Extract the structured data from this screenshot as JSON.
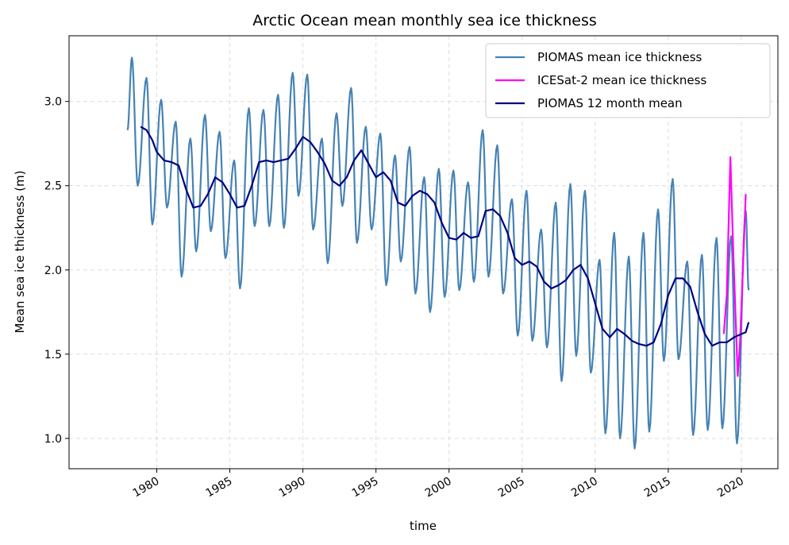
{
  "chart_data": {
    "type": "line",
    "title": "Arctic Ocean mean monthly sea ice thickness",
    "xlabel": "time",
    "ylabel": "Mean sea ice thickness (m)",
    "xlim": [
      1974.0,
      2022.5
    ],
    "ylim": [
      0.82,
      3.39
    ],
    "x_ticks": [
      1980,
      1985,
      1990,
      1995,
      2000,
      2005,
      2010,
      2015,
      2020
    ],
    "x_tick_labels": [
      "1980",
      "1985",
      "1990",
      "1995",
      "2000",
      "2005",
      "2010",
      "2015",
      "2020"
    ],
    "y_ticks": [
      1.0,
      1.5,
      2.0,
      2.5,
      3.0
    ],
    "y_tick_labels": [
      "1.0",
      "1.5",
      "2.0",
      "2.5",
      "3.0"
    ],
    "grid": true,
    "legend_position": "top-right",
    "series": [
      {
        "name": "PIOMAS mean ice thickness",
        "color": "#4682b4",
        "style": "seasonal-cycle",
        "annual_max": [
          [
            1978,
            3.26
          ],
          [
            1979,
            3.14
          ],
          [
            1980,
            3.01
          ],
          [
            1981,
            2.88
          ],
          [
            1982,
            2.78
          ],
          [
            1983,
            2.92
          ],
          [
            1984,
            2.82
          ],
          [
            1985,
            2.65
          ],
          [
            1986,
            2.96
          ],
          [
            1987,
            2.95
          ],
          [
            1988,
            3.04
          ],
          [
            1989,
            3.17
          ],
          [
            1990,
            3.16
          ],
          [
            1991,
            2.78
          ],
          [
            1992,
            2.93
          ],
          [
            1993,
            3.08
          ],
          [
            1994,
            2.85
          ],
          [
            1995,
            2.81
          ],
          [
            1996,
            2.68
          ],
          [
            1997,
            2.73
          ],
          [
            1998,
            2.55
          ],
          [
            1999,
            2.6
          ],
          [
            2000,
            2.59
          ],
          [
            2001,
            2.52
          ],
          [
            2002,
            2.83
          ],
          [
            2003,
            2.74
          ],
          [
            2004,
            2.42
          ],
          [
            2005,
            2.47
          ],
          [
            2006,
            2.24
          ],
          [
            2007,
            2.4
          ],
          [
            2008,
            2.51
          ],
          [
            2009,
            2.47
          ],
          [
            2010,
            2.06
          ],
          [
            2011,
            2.22
          ],
          [
            2012,
            2.08
          ],
          [
            2013,
            2.22
          ],
          [
            2014,
            2.36
          ],
          [
            2015,
            2.54
          ],
          [
            2016,
            2.05
          ],
          [
            2017,
            2.09
          ],
          [
            2018,
            2.19
          ],
          [
            2019,
            2.2
          ],
          [
            2020,
            2.35
          ]
        ],
        "annual_min": [
          [
            1978,
            2.5
          ],
          [
            1979,
            2.27
          ],
          [
            1980,
            2.37
          ],
          [
            1981,
            1.96
          ],
          [
            1982,
            2.11
          ],
          [
            1983,
            2.23
          ],
          [
            1984,
            2.07
          ],
          [
            1985,
            1.89
          ],
          [
            1986,
            2.26
          ],
          [
            1987,
            2.26
          ],
          [
            1988,
            2.25
          ],
          [
            1989,
            2.44
          ],
          [
            1990,
            2.24
          ],
          [
            1991,
            2.04
          ],
          [
            1992,
            2.38
          ],
          [
            1993,
            2.16
          ],
          [
            1994,
            2.24
          ],
          [
            1995,
            1.91
          ],
          [
            1996,
            2.05
          ],
          [
            1997,
            1.86
          ],
          [
            1998,
            1.75
          ],
          [
            1999,
            1.84
          ],
          [
            2000,
            1.88
          ],
          [
            2001,
            1.93
          ],
          [
            2002,
            1.96
          ],
          [
            2003,
            1.86
          ],
          [
            2004,
            1.61
          ],
          [
            2005,
            1.58
          ],
          [
            2006,
            1.54
          ],
          [
            2007,
            1.34
          ],
          [
            2008,
            1.49
          ],
          [
            2009,
            1.39
          ],
          [
            2010,
            1.03
          ],
          [
            2011,
            1.0
          ],
          [
            2012,
            0.94
          ],
          [
            2013,
            1.04
          ],
          [
            2014,
            1.46
          ],
          [
            2015,
            1.47
          ],
          [
            2016,
            1.02
          ],
          [
            2017,
            1.05
          ],
          [
            2018,
            1.06
          ],
          [
            2019,
            0.97
          ]
        ],
        "start": [
          1978.0,
          2.83
        ],
        "end": [
          2020.5,
          1.88
        ]
      },
      {
        "name": "ICESat-2 mean ice thickness",
        "color": "#ff00ff",
        "x": [
          2018.8,
          2019.0,
          2019.25,
          2019.45,
          2019.75,
          2019.9,
          2020.15,
          2020.3
        ],
        "y": [
          1.62,
          1.85,
          2.67,
          2.1,
          1.37,
          1.55,
          2.1,
          2.45
        ]
      },
      {
        "name": "PIOMAS 12 month mean",
        "color": "#000080",
        "x": [
          1978.9,
          1979.3,
          1979.7,
          1980.0,
          1980.5,
          1981.0,
          1981.5,
          1982.0,
          1982.5,
          1983.0,
          1983.5,
          1984.0,
          1984.5,
          1985.0,
          1985.5,
          1986.0,
          1986.5,
          1987.0,
          1987.5,
          1988.0,
          1988.5,
          1989.0,
          1989.5,
          1990.0,
          1990.5,
          1991.0,
          1991.5,
          1992.0,
          1992.5,
          1993.0,
          1993.5,
          1994.0,
          1994.5,
          1995.0,
          1995.5,
          1996.0,
          1996.5,
          1997.0,
          1997.5,
          1998.0,
          1998.5,
          1999.0,
          1999.5,
          2000.0,
          2000.5,
          2001.0,
          2001.5,
          2002.0,
          2002.5,
          2003.0,
          2003.5,
          2004.0,
          2004.5,
          2005.0,
          2005.5,
          2006.0,
          2006.5,
          2007.0,
          2007.5,
          2008.0,
          2008.5,
          2009.0,
          2009.5,
          2010.0,
          2010.5,
          2011.0,
          2011.5,
          2012.0,
          2012.5,
          2013.0,
          2013.5,
          2014.0,
          2014.5,
          2015.0,
          2015.5,
          2016.0,
          2016.5,
          2017.0,
          2017.5,
          2018.0,
          2018.5,
          2019.0,
          2019.5,
          2020.0,
          2020.3,
          2020.5
        ],
        "y": [
          2.85,
          2.83,
          2.77,
          2.7,
          2.65,
          2.64,
          2.62,
          2.48,
          2.37,
          2.38,
          2.45,
          2.55,
          2.52,
          2.45,
          2.37,
          2.38,
          2.5,
          2.64,
          2.65,
          2.64,
          2.65,
          2.66,
          2.72,
          2.79,
          2.76,
          2.7,
          2.63,
          2.53,
          2.5,
          2.55,
          2.65,
          2.71,
          2.63,
          2.55,
          2.58,
          2.53,
          2.4,
          2.38,
          2.44,
          2.47,
          2.45,
          2.4,
          2.28,
          2.19,
          2.18,
          2.22,
          2.19,
          2.2,
          2.35,
          2.36,
          2.32,
          2.22,
          2.07,
          2.03,
          2.05,
          2.02,
          1.93,
          1.89,
          1.91,
          1.94,
          2.0,
          2.03,
          1.95,
          1.8,
          1.65,
          1.6,
          1.65,
          1.62,
          1.58,
          1.56,
          1.55,
          1.57,
          1.68,
          1.85,
          1.95,
          1.95,
          1.9,
          1.75,
          1.62,
          1.55,
          1.57,
          1.57,
          1.6,
          1.62,
          1.63,
          1.69
        ]
      }
    ]
  }
}
